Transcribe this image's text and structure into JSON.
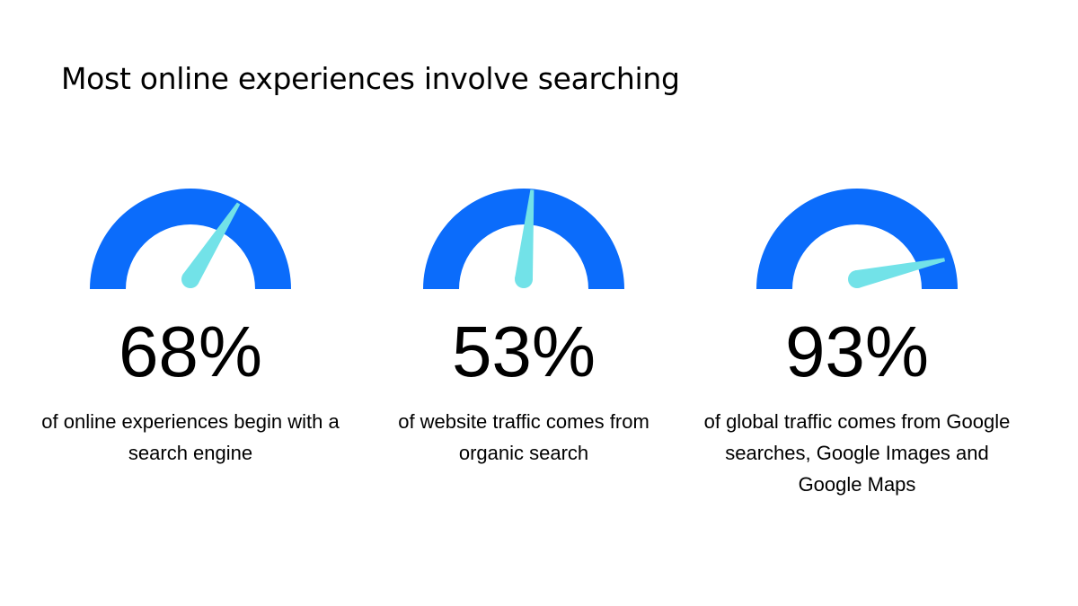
{
  "title": "Most online experiences involve searching",
  "chart_data": [
    {
      "type": "gauge",
      "values": [
        68
      ],
      "value_labels": [
        "68%"
      ],
      "ylim": [
        0,
        100
      ],
      "color": "#0b6cfb",
      "needle_color": "#72e2e8",
      "caption": "of online experiences begin with a search engine"
    },
    {
      "type": "gauge",
      "values": [
        53
      ],
      "value_labels": [
        "53%"
      ],
      "ylim": [
        0,
        100
      ],
      "color": "#0b6cfb",
      "needle_color": "#72e2e8",
      "caption": "of website traffic comes from organic search"
    },
    {
      "type": "gauge",
      "values": [
        93
      ],
      "value_labels": [
        "93%"
      ],
      "ylim": [
        0,
        100
      ],
      "color": "#0b6cfb",
      "needle_color": "#72e2e8",
      "caption": "of global traffic comes from Google searches, Google Images and Google Maps"
    }
  ]
}
